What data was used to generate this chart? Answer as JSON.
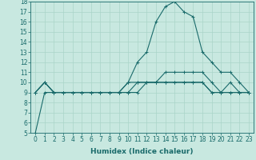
{
  "title": "",
  "xlabel": "Humidex (Indice chaleur)",
  "ylabel": "",
  "x": [
    0,
    1,
    2,
    3,
    4,
    5,
    6,
    7,
    8,
    9,
    10,
    11,
    12,
    13,
    14,
    15,
    16,
    17,
    18,
    19,
    20,
    21,
    22,
    23
  ],
  "series": [
    [
      5,
      9,
      9,
      9,
      9,
      9,
      9,
      9,
      9,
      9,
      9,
      10,
      10,
      10,
      10,
      10,
      10,
      10,
      10,
      9,
      9,
      9,
      9,
      9
    ],
    [
      9,
      10,
      9,
      9,
      9,
      9,
      9,
      9,
      9,
      9,
      9,
      9,
      10,
      10,
      10,
      10,
      10,
      10,
      10,
      9,
      9,
      9,
      9,
      9
    ],
    [
      9,
      10,
      9,
      9,
      9,
      9,
      9,
      9,
      9,
      9,
      10,
      10,
      10,
      10,
      11,
      11,
      11,
      11,
      11,
      10,
      9,
      10,
      9,
      9
    ],
    [
      9,
      10,
      9,
      9,
      9,
      9,
      9,
      9,
      9,
      9,
      10,
      12,
      13,
      16,
      17.5,
      18,
      17,
      16.5,
      13,
      12,
      11,
      11,
      10,
      9
    ]
  ],
  "line_color": "#1a6b6b",
  "marker": "+",
  "markersize": 3,
  "linewidth": 0.8,
  "bg_color": "#c8e8e0",
  "grid_color": "#aad4c8",
  "ylim": [
    5,
    18
  ],
  "xlim": [
    -0.5,
    23.5
  ],
  "yticks": [
    5,
    6,
    7,
    8,
    9,
    10,
    11,
    12,
    13,
    14,
    15,
    16,
    17,
    18
  ],
  "xticks": [
    0,
    1,
    2,
    3,
    4,
    5,
    6,
    7,
    8,
    9,
    10,
    11,
    12,
    13,
    14,
    15,
    16,
    17,
    18,
    19,
    20,
    21,
    22,
    23
  ],
  "tick_fontsize": 5.5,
  "label_fontsize": 6.5
}
